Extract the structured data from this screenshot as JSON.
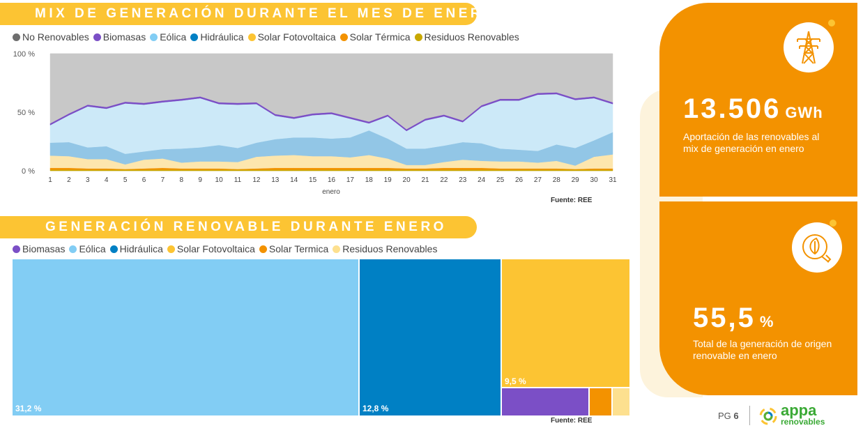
{
  "top_banner": {
    "title": "MIX DE GENERACIÓN DURANTE EL MES DE ENERO"
  },
  "bottom_banner": {
    "title": "GENERACIÓN RENOVABLE DURANTE ENERO"
  },
  "colors": {
    "banner": "#fcc433",
    "card": "#f39200",
    "no_renovables": "#c8c8c8",
    "biomasas": "#7b4fc6",
    "eolica": "#cce9f8",
    "eolica_treemap": "#82cdf4",
    "hidraulica": "#92c6e6",
    "hidraulica_treemap": "#0080c4",
    "solar_fv": "#fde6ad",
    "solar_fv_treemap": "#fcc433",
    "solar_termica": "#f39200",
    "residuos": "#c8a800",
    "residuos_treemap": "#fde08f"
  },
  "chart_data": [
    {
      "type": "area",
      "stacked": true,
      "legend_position": "top-left",
      "legend": [
        {
          "label": "No Renovables",
          "color": "#6e6e6e"
        },
        {
          "label": "Biomasas",
          "color": "#7b4fc6"
        },
        {
          "label": "Eólica",
          "color": "#82cdf4"
        },
        {
          "label": "Hidráulica",
          "color": "#0080c4"
        },
        {
          "label": "Solar Fotovoltaica",
          "color": "#fcc433"
        },
        {
          "label": "Solar Térmica",
          "color": "#f39200"
        },
        {
          "label": "Residuos Renovables",
          "color": "#c8a800"
        }
      ],
      "x": [
        1,
        2,
        3,
        4,
        5,
        6,
        7,
        8,
        9,
        10,
        11,
        12,
        13,
        14,
        15,
        16,
        17,
        18,
        19,
        20,
        21,
        22,
        23,
        24,
        25,
        26,
        27,
        28,
        29,
        30,
        31
      ],
      "x_ticks": [
        "1",
        "2",
        "3",
        "4",
        "5",
        "6",
        "7",
        "8",
        "9",
        "10",
        "11",
        "12",
        "13",
        "14",
        "15",
        "16",
        "17",
        "18",
        "19",
        "20",
        "21",
        "22",
        "23",
        "24",
        "25",
        "26",
        "27",
        "28",
        "29",
        "30",
        "31"
      ],
      "xlabel": "enero",
      "ylim": [
        0,
        100
      ],
      "y_ticks": [
        0,
        50,
        100
      ],
      "y_tick_labels": [
        "0 %",
        "50 %",
        "100 %"
      ],
      "series": [
        {
          "name": "Residuos Renovables",
          "values": [
            1,
            1,
            1,
            1,
            1,
            1,
            1,
            1,
            1,
            1,
            1,
            1,
            1,
            1,
            1,
            1,
            1,
            1,
            1,
            1,
            1,
            1,
            1,
            1,
            1,
            1,
            1,
            1,
            1,
            1,
            1
          ]
        },
        {
          "name": "Solar Térmica",
          "values": [
            1.5,
            1.5,
            1,
            1,
            0.5,
            1,
            1.5,
            1,
            1,
            1,
            0.5,
            1,
            1.5,
            1.5,
            1.5,
            1.5,
            1.5,
            1.5,
            1.5,
            1,
            1,
            1.5,
            1.5,
            1.5,
            1,
            1,
            1,
            1,
            0.5,
            1,
            1
          ]
        },
        {
          "name": "Solar Fotovoltaica",
          "values": [
            10.5,
            10,
            8,
            8,
            4,
            7.5,
            8,
            5,
            6,
            6,
            6,
            10,
            10.5,
            11,
            10,
            10,
            9,
            11,
            8,
            3,
            3,
            5,
            7,
            6,
            6,
            6,
            5,
            6.5,
            3,
            10,
            12
          ]
        },
        {
          "name": "Hidráulica",
          "values": [
            11,
            12,
            10,
            11,
            9,
            7,
            8,
            12,
            12,
            14,
            12,
            12,
            14,
            15,
            16,
            15,
            17,
            21,
            17,
            14,
            14,
            14,
            15,
            15,
            11,
            10,
            10,
            14,
            15,
            14,
            19
          ]
        },
        {
          "name": "Eólica",
          "values": [
            15,
            23,
            35,
            32,
            43,
            40,
            40,
            41,
            42,
            35,
            37,
            33,
            20,
            16,
            19,
            21,
            16,
            6,
            19,
            15,
            24,
            25,
            17,
            31,
            41,
            42,
            48,
            43,
            41,
            36,
            24
          ]
        },
        {
          "name": "Biomasas",
          "values": [
            1.5,
            1.5,
            1.5,
            1.5,
            1.5,
            1.5,
            1.5,
            1.5,
            1.5,
            1.5,
            1.5,
            1.5,
            1.5,
            1.5,
            1.5,
            1.5,
            1.5,
            1.5,
            1.5,
            1.5,
            1.5,
            1.5,
            1.5,
            1.5,
            1.5,
            1.5,
            1.5,
            1.5,
            1.5,
            1.5,
            1.5
          ]
        },
        {
          "name": "No Renovables",
          "values": [
            59.5,
            51,
            43.5,
            45.5,
            41,
            42,
            40,
            38.5,
            36.5,
            41.5,
            42,
            41.5,
            51.5,
            54,
            51,
            50,
            54,
            58,
            52,
            64.5,
            55.5,
            52,
            57,
            44,
            38.5,
            38.5,
            33.5,
            33,
            38,
            36.5,
            41.5
          ]
        }
      ],
      "source": "Fuente: REE"
    },
    {
      "type": "treemap",
      "legend_position": "top-left",
      "legend": [
        {
          "label": "Biomasas",
          "color": "#7b4fc6"
        },
        {
          "label": "Eólica",
          "color": "#82cdf4"
        },
        {
          "label": "Hidráulica",
          "color": "#0080c4"
        },
        {
          "label": "Solar Fotovoltaica",
          "color": "#fcc433"
        },
        {
          "label": "Solar Termica",
          "color": "#f39200"
        },
        {
          "label": "Residuos Renovables",
          "color": "#fde08f"
        }
      ],
      "items": [
        {
          "name": "Eólica",
          "value": 31.2,
          "label": "31,2 %"
        },
        {
          "name": "Hidráulica",
          "value": 12.8,
          "label": "12,8 %"
        },
        {
          "name": "Solar Fotovoltaica",
          "value": 9.5,
          "label": "9,5 %"
        },
        {
          "name": "Biomasas",
          "value": 1.4,
          "label": ""
        },
        {
          "name": "Solar Termica",
          "value": 0.4,
          "label": ""
        },
        {
          "name": "Residuos Renovables",
          "value": 0.2,
          "label": ""
        }
      ],
      "source": "Fuente: REE"
    }
  ],
  "kpi_top": {
    "value": "13.506",
    "unit": "GWh",
    "description": "Aportación de las renovables al mix de generación en enero",
    "icon": "power-tower-icon"
  },
  "kpi_bottom": {
    "value": "55,5",
    "unit": "%",
    "description": "Total de la generación de origen renovable en enero",
    "icon": "leaf-plug-icon"
  },
  "footer": {
    "page_prefix": "PG",
    "page_number": "6",
    "logo_name": "appa",
    "logo_sub": "renovables",
    "logo_icon": "spiral-logo-icon"
  }
}
